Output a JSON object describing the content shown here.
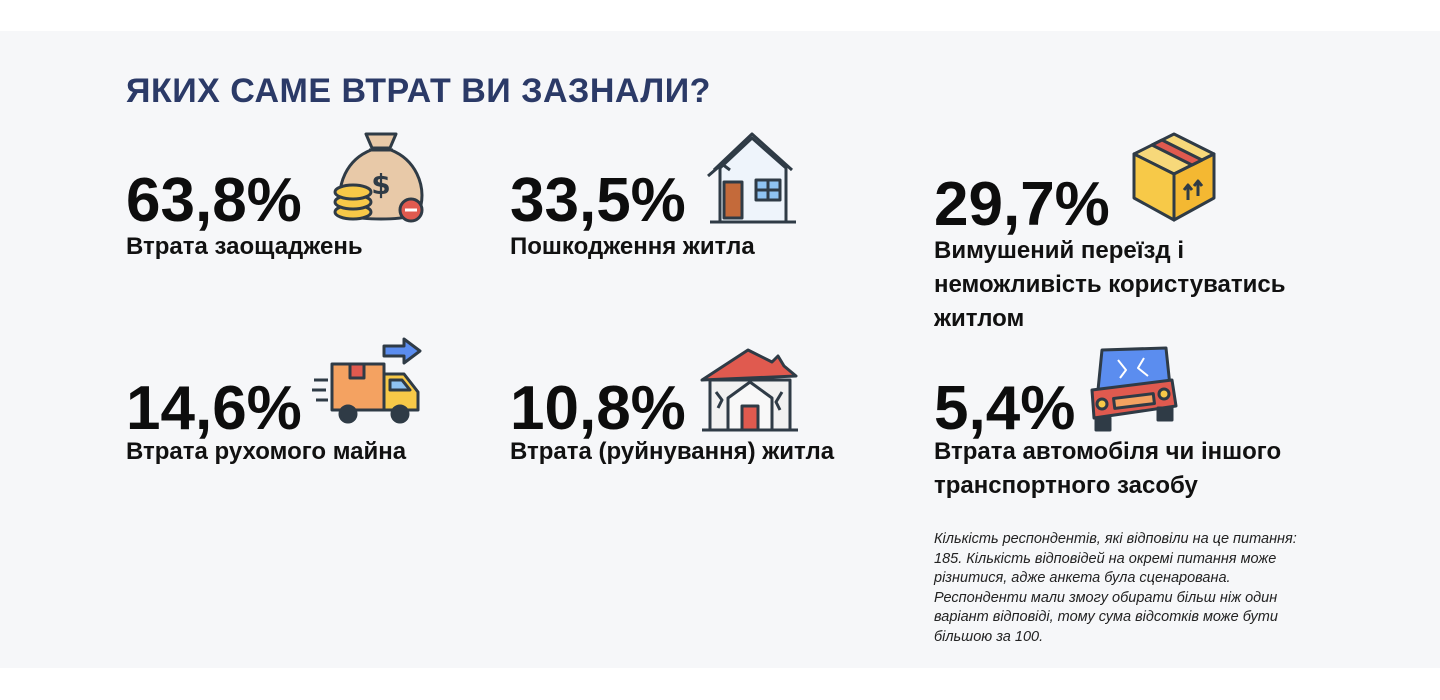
{
  "title": "ЯКИХ САМЕ ВТРАТ ВИ ЗАЗНАЛИ?",
  "chart_data": {
    "type": "table",
    "title": "ЯКИХ САМЕ ВТРАТ ВИ ЗАЗНАЛИ?",
    "unit": "%",
    "categories": [
      "Втрата заощаджень",
      "Пошкодження житла",
      "Вимушений переїзд і неможливість користуватись житлом",
      "Втрата рухомого майна",
      "Втрата (руйнування) житла",
      "Втрата автомобіля чи іншого транспортного засобу"
    ],
    "values": [
      63.8,
      33.5,
      29.7,
      14.6,
      10.8,
      5.4
    ]
  },
  "stats": [
    {
      "value_text": "63,8%",
      "label": "Втрата заощаджень",
      "icon": "money-bag-icon"
    },
    {
      "value_text": "33,5%",
      "label": "Пошкодження житла",
      "icon": "damaged-house-icon"
    },
    {
      "value_text": "29,7%",
      "label": "Вимушений переїзд і неможливість користуватись житлом",
      "icon": "moving-box-icon"
    },
    {
      "value_text": "14,6%",
      "label": "Втрата рухомого майна",
      "icon": "delivery-truck-icon"
    },
    {
      "value_text": "10,8%",
      "label": "Втрата (руйнування) житла",
      "icon": "destroyed-house-icon"
    },
    {
      "value_text": "5,4%",
      "label": "Втрата автомобіля чи іншого транспортного засобу",
      "icon": "crashed-car-icon"
    }
  ],
  "note": "Кількість респондентів, які відповіли на це питання: 185. Кількість відповідей на окремі питання може різнитися, адже анкета була сценарована. Респонденти мали змогу обирати більш ніж один варіант відповіді, тому сума відсотків може бути більшою за 100.",
  "colors": {
    "background": "#f6f7f9",
    "title": "#2b3a67",
    "text": "#0d0d0d",
    "icon_outline": "#2f3b46",
    "icon_orange": "#f4a261",
    "icon_yellow": "#f7c948",
    "icon_red": "#e05a4f",
    "icon_blue": "#5b8def"
  }
}
